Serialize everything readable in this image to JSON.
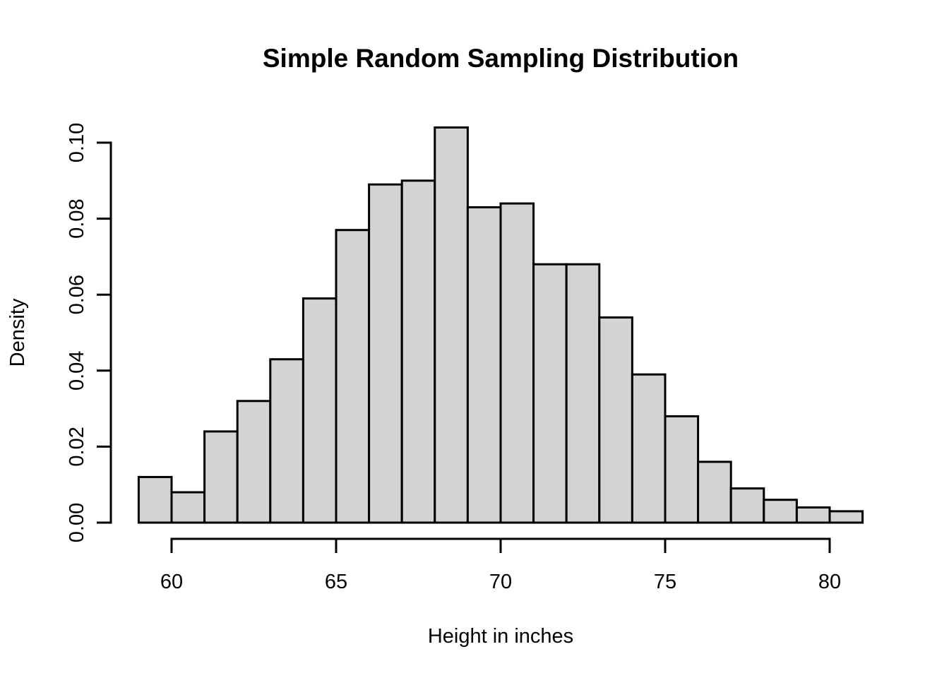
{
  "figure": {
    "background": "#FFFFFF"
  },
  "chart_data": {
    "type": "bar",
    "subtype": "histogram",
    "title": "Simple Random Sampling Distribution",
    "xlabel": "Height in inches",
    "ylabel": "Density",
    "grid": false,
    "legend": "none",
    "bin_width": 1,
    "bin_edges": [
      59,
      60,
      61,
      62,
      63,
      64,
      65,
      66,
      67,
      68,
      69,
      70,
      71,
      72,
      73,
      74,
      75,
      76,
      77,
      78,
      79,
      80,
      81
    ],
    "categories": [
      "59-60",
      "60-61",
      "61-62",
      "62-63",
      "63-64",
      "64-65",
      "65-66",
      "66-67",
      "67-68",
      "68-69",
      "69-70",
      "70-71",
      "71-72",
      "72-73",
      "73-74",
      "74-75",
      "75-76",
      "76-77",
      "77-78",
      "78-79",
      "79-80",
      "80-81"
    ],
    "values": [
      0.012,
      0.008,
      0.024,
      0.032,
      0.043,
      0.059,
      0.077,
      0.089,
      0.09,
      0.104,
      0.083,
      0.084,
      0.068,
      0.068,
      0.054,
      0.039,
      0.028,
      0.016,
      0.009,
      0.006,
      0.004,
      0.003
    ],
    "xlim": [
      59,
      81
    ],
    "ylim": [
      0,
      0.104
    ],
    "x_ticks": [
      60,
      65,
      70,
      75,
      80
    ],
    "x_tick_labels": [
      "60",
      "65",
      "70",
      "75",
      "80"
    ],
    "y_ticks": [
      0,
      0.02,
      0.04,
      0.06,
      0.08,
      0.1
    ],
    "y_tick_labels": [
      "0.00",
      "0.02",
      "0.04",
      "0.06",
      "0.08",
      "0.10"
    ],
    "bar_fill": "#D3D3D3",
    "bar_border": "#000000",
    "axis_color": "#000000",
    "text_color": "#000000"
  }
}
